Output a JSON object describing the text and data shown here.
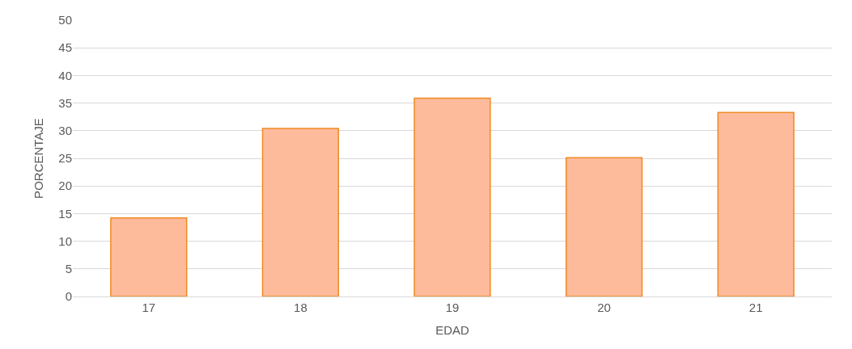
{
  "chart_data": {
    "type": "bar",
    "xlabel": "EDAD",
    "ylabel": "PORCENTAJE",
    "categories": [
      "17",
      "18",
      "19",
      "20",
      "21"
    ],
    "series": [
      {
        "color": "#fdbb9b",
        "values": [
          14.2,
          30.4,
          35.9,
          25.1,
          33.3
        ]
      }
    ],
    "ylim": [
      0,
      50
    ],
    "yticks": [
      0,
      5,
      10,
      15,
      20,
      25,
      30,
      35,
      40,
      45,
      50
    ],
    "grid": "y"
  }
}
